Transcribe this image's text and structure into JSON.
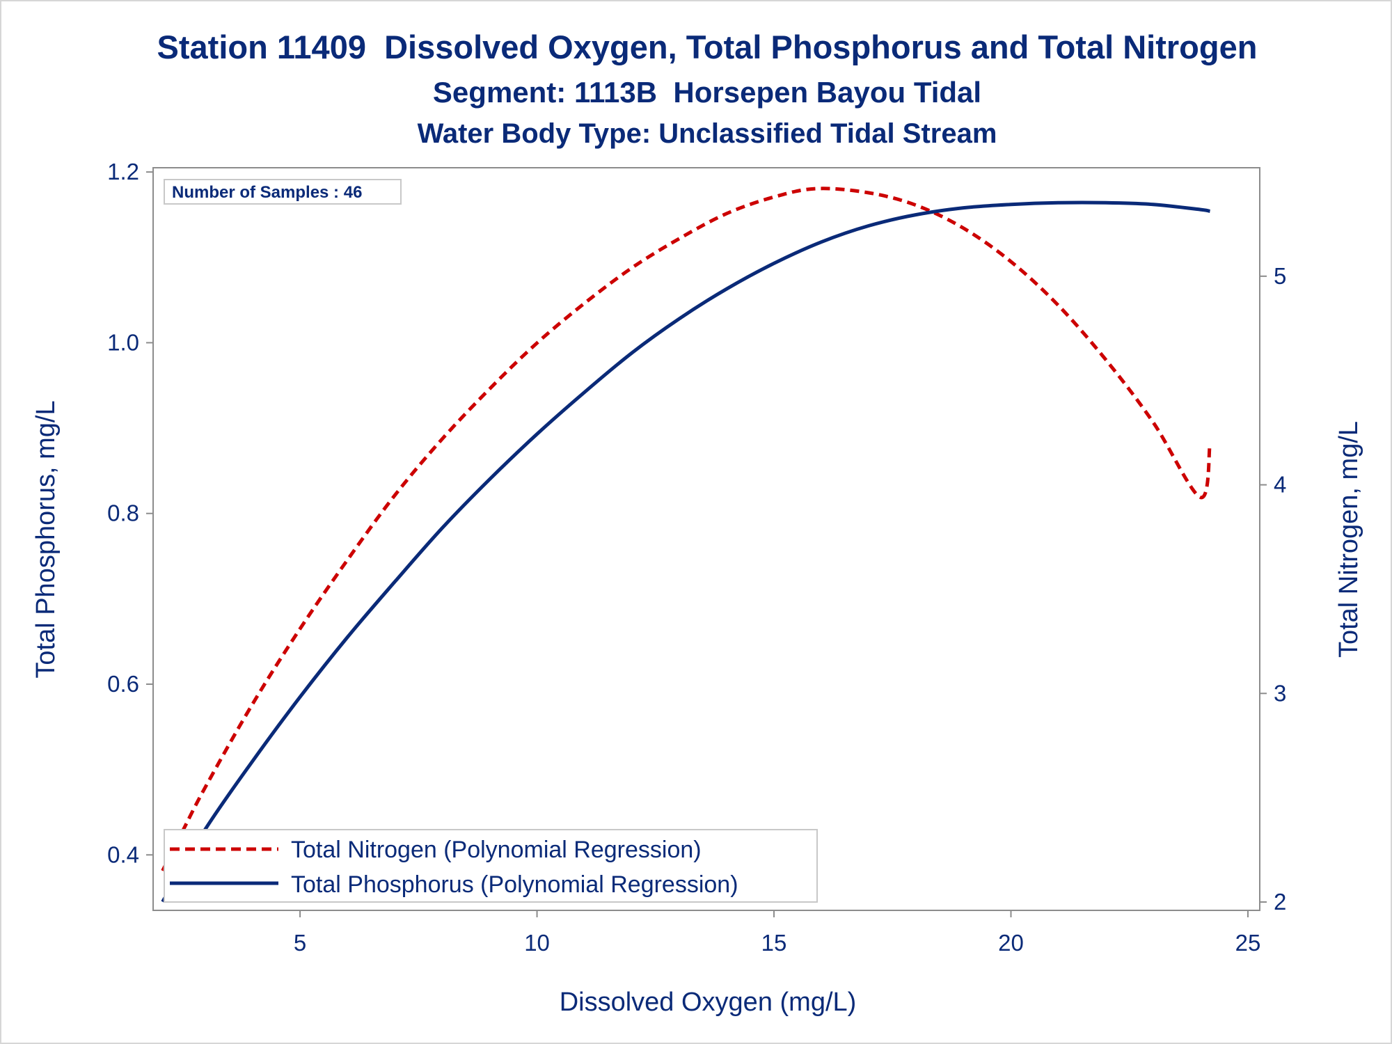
{
  "chart_data": {
    "type": "line",
    "title": "Station 11409  Dissolved Oxygen, Total Phosphorus and Total Nitrogen",
    "subtitle": "Segment: 1113B  Horsepen Bayou Tidal",
    "subtitle2": "Water Body Type: Unclassified Tidal Stream",
    "xlabel": "Dissolved Oxygen (mg/L)",
    "ylabel": "Total Phosphorus, mg/L",
    "y2label": "Total Nitrogen, mg/L",
    "xlim": [
      1.9,
      25.25
    ],
    "ylim": [
      0.335,
      1.205
    ],
    "y2lim": [
      1.96,
      5.52
    ],
    "xticks": [
      5,
      10,
      15,
      20,
      25
    ],
    "yticks": [
      0.4,
      0.6,
      0.8,
      1.0,
      1.2
    ],
    "ytick_labels": [
      "0.4",
      "0.6",
      "0.8",
      "1.0",
      "1.2"
    ],
    "y2ticks": [
      2,
      3,
      4,
      5
    ],
    "annotation": "Number of Samples : 46",
    "grid": false,
    "legend_position": "bottom-left",
    "series": [
      {
        "name": "Total Nitrogen (Polynomial Regression)",
        "axis": "right",
        "color": "#cc0000",
        "style": "dashed",
        "x": [
          2.1,
          2.5,
          3,
          4,
          5,
          6,
          7,
          8,
          9,
          10,
          11,
          12,
          13,
          14,
          15,
          15.9,
          17,
          18,
          19,
          20,
          21,
          22,
          23,
          24,
          24.2
        ],
        "y": [
          2.15,
          2.33,
          2.55,
          2.95,
          3.31,
          3.64,
          3.95,
          4.22,
          4.46,
          4.68,
          4.87,
          5.04,
          5.18,
          5.3,
          5.38,
          5.42,
          5.4,
          5.34,
          5.23,
          5.07,
          4.86,
          4.6,
          4.3,
          3.94,
          4.2
        ]
      },
      {
        "name": "Total Phosphorus (Polynomial Regression)",
        "axis": "left",
        "color": "#0a2a78",
        "style": "solid",
        "x": [
          2.1,
          3,
          4,
          5,
          6,
          7,
          8,
          9,
          10,
          11,
          12,
          13,
          14,
          15,
          16,
          17,
          18,
          19,
          20,
          21,
          22,
          23,
          24,
          24.2
        ],
        "y": [
          0.345,
          0.43,
          0.51,
          0.585,
          0.655,
          0.72,
          0.783,
          0.84,
          0.893,
          0.942,
          0.988,
          1.028,
          1.063,
          1.093,
          1.118,
          1.137,
          1.15,
          1.158,
          1.162,
          1.164,
          1.164,
          1.162,
          1.156,
          1.154
        ]
      }
    ]
  }
}
